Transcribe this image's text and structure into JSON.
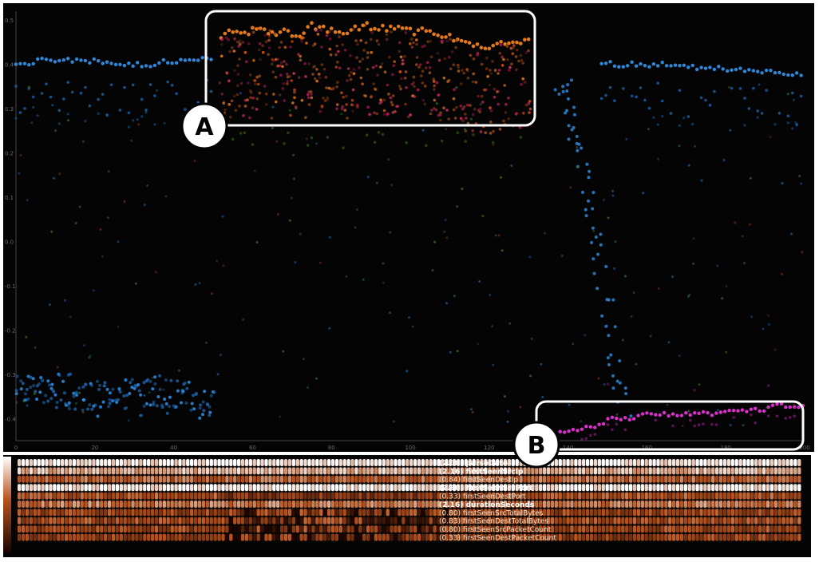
{
  "chart_data": {
    "type": "scatter",
    "title": "",
    "xlabel": "",
    "ylabel": "",
    "x_ticks": [
      "0",
      "20",
      "40",
      "60",
      "80",
      "100",
      "120",
      "140",
      "160",
      "180",
      "200"
    ],
    "y_ticks": [
      "0.5",
      "0.4",
      "0.3",
      "0.2",
      "0.1",
      "0.0",
      "-0.1",
      "-0.2",
      "-0.3",
      "-0.4"
    ],
    "xlim": [
      0,
      200
    ],
    "ylim": [
      -0.45,
      0.52
    ],
    "background": "#040404",
    "series": [
      {
        "color": "#2f8fe6",
        "y": [
          0.4,
          0.41,
          0.41,
          0.4,
          0.4,
          0.41,
          0.41,
          0.4,
          0.41,
          0.4,
          0.4,
          0.41,
          0.41,
          0.41,
          0.4,
          0.4,
          0.39,
          0.39,
          0.4,
          0.4,
          0.4,
          0.39,
          0.39,
          0.38,
          0.38
        ]
      },
      {
        "color": "#2f8fe6",
        "y": [
          -0.33,
          -0.34,
          -0.32,
          -0.33,
          -0.35,
          -0.34,
          -0.33,
          -0.35,
          -0.34,
          -0.36,
          -0.35,
          -0.34,
          -0.33,
          -0.35,
          -0.34,
          -0.36,
          -0.34,
          -0.33,
          -0.35,
          -0.34,
          -0.36,
          -0.35,
          -0.37,
          -0.36,
          -0.38
        ]
      },
      {
        "color": "#f07f1a",
        "y": [
          0.46,
          0.48,
          0.47,
          0.49,
          0.47,
          0.48,
          0.46,
          0.49,
          0.48,
          0.47,
          0.47,
          0.49,
          0.48,
          0.48,
          0.49,
          0.47,
          0.48,
          0.47,
          0.46,
          0.45,
          0.44,
          0.44,
          0.45,
          0.45,
          0.45
        ]
      },
      {
        "color": "#e82fd8",
        "y": [
          -0.43,
          -0.43,
          -0.42,
          -0.42,
          -0.41,
          -0.4,
          -0.4,
          -0.4,
          -0.39,
          -0.39,
          -0.39,
          -0.39,
          -0.39,
          -0.39,
          -0.39,
          -0.39,
          -0.38,
          -0.38,
          -0.38,
          -0.38,
          -0.38,
          -0.37,
          -0.37,
          -0.37,
          -0.37
        ]
      },
      {
        "color": "#2f8fe6",
        "y": [
          0.37,
          0.36,
          0.33,
          0.3,
          0.27,
          0.24,
          0.2,
          0.17,
          0.12,
          0.08,
          0.04,
          0.0,
          -0.05,
          -0.1,
          -0.16,
          -0.22,
          -0.27,
          -0.32,
          -0.35,
          -0.37
        ]
      }
    ]
  },
  "heatmap": {
    "rows": [
      {
        "label": "(2.08) parseDate",
        "bold": true
      },
      {
        "label": "(2.16) firstSeenSrcIp",
        "bold": true
      },
      {
        "label": "(0.84) firstSeenDestIp",
        "bold": false
      },
      {
        "label": "(2.30) firstSeenSrcPort",
        "bold": true
      },
      {
        "label": "(0.33) firstSeenDestPort",
        "bold": false
      },
      {
        "label": "(2.16) durationSeconds",
        "bold": true
      },
      {
        "label": "(0.80) firstSeenSrcTotalBytes",
        "bold": false
      },
      {
        "label": "(0.83) firstSeenDestTotalBytes",
        "bold": false
      },
      {
        "label": "(0.80) firstSeenSrcPacketCount",
        "bold": false
      },
      {
        "label": "(0.33) firstSeenDestPacketCount",
        "bold": false
      }
    ],
    "color_low": "#1a0500",
    "color_mid": "#b8521c",
    "color_high": "#ffffff"
  },
  "callouts": [
    {
      "letter": "A"
    },
    {
      "letter": "B"
    }
  ]
}
